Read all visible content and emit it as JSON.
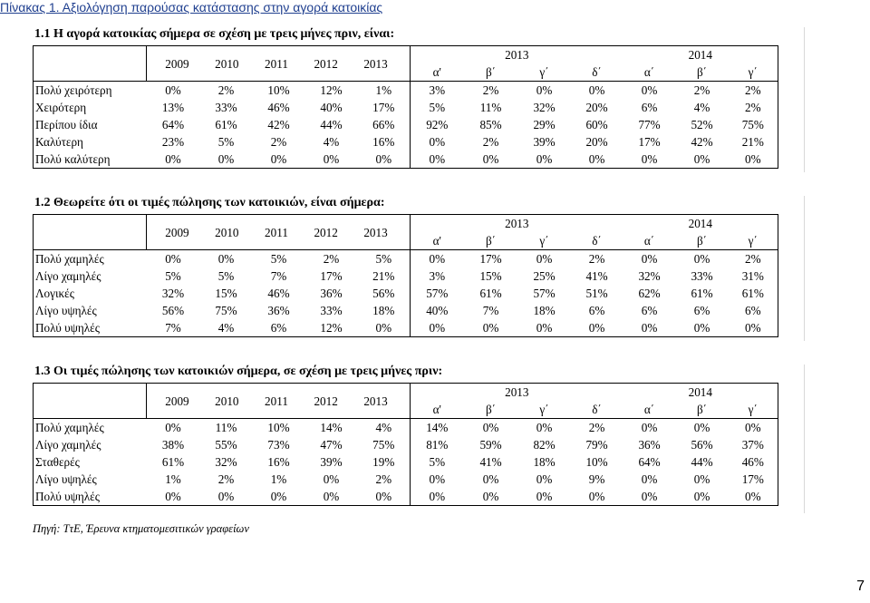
{
  "caption": "Πίνακας 1. Αξιολόγηση παρούσας κατάστασης στην αγορά κατοικίας",
  "years": [
    "2009",
    "2010",
    "2011",
    "2012",
    "2013"
  ],
  "group_2013": "2013",
  "group_2014": "2014",
  "quarters_2013": [
    "α'",
    "β΄",
    "γ΄",
    "δ΄"
  ],
  "quarters_2014": [
    "α΄",
    "β΄",
    "γ΄"
  ],
  "sections": [
    {
      "title": "1.1 Η αγορά κατοικίας σήμερα σε σχέση με τρεις μήνες πριν, είναι:",
      "rows": [
        {
          "label": "Πολύ χειρότερη",
          "values": [
            "0%",
            "2%",
            "10%",
            "12%",
            "1%",
            "3%",
            "2%",
            "0%",
            "0%",
            "0%",
            "2%",
            "2%"
          ]
        },
        {
          "label": "Χειρότερη",
          "values": [
            "13%",
            "33%",
            "46%",
            "40%",
            "17%",
            "5%",
            "11%",
            "32%",
            "20%",
            "6%",
            "4%",
            "2%"
          ]
        },
        {
          "label": "Περίπου ίδια",
          "values": [
            "64%",
            "61%",
            "42%",
            "44%",
            "66%",
            "92%",
            "85%",
            "29%",
            "60%",
            "77%",
            "52%",
            "75%"
          ]
        },
        {
          "label": "Καλύτερη",
          "values": [
            "23%",
            "5%",
            "2%",
            "4%",
            "16%",
            "0%",
            "2%",
            "39%",
            "20%",
            "17%",
            "42%",
            "21%"
          ]
        },
        {
          "label": "Πολύ καλύτερη",
          "values": [
            "0%",
            "0%",
            "0%",
            "0%",
            "0%",
            "0%",
            "0%",
            "0%",
            "0%",
            "0%",
            "0%",
            "0%"
          ]
        }
      ]
    },
    {
      "title": "1.2 Θεωρείτε ότι οι τιμές πώλησης των κατοικιών, είναι σήμερα:",
      "rows": [
        {
          "label": "Πολύ χαμηλές",
          "values": [
            "0%",
            "0%",
            "5%",
            "2%",
            "5%",
            "0%",
            "17%",
            "0%",
            "2%",
            "0%",
            "0%",
            "2%"
          ]
        },
        {
          "label": "Λίγο χαμηλές",
          "values": [
            "5%",
            "5%",
            "7%",
            "17%",
            "21%",
            "3%",
            "15%",
            "25%",
            "41%",
            "32%",
            "33%",
            "31%"
          ]
        },
        {
          "label": "Λογικές",
          "values": [
            "32%",
            "15%",
            "46%",
            "36%",
            "56%",
            "57%",
            "61%",
            "57%",
            "51%",
            "62%",
            "61%",
            "61%"
          ]
        },
        {
          "label": "Λίγο υψηλές",
          "values": [
            "56%",
            "75%",
            "36%",
            "33%",
            "18%",
            "40%",
            "7%",
            "18%",
            "6%",
            "6%",
            "6%",
            "6%"
          ]
        },
        {
          "label": "Πολύ υψηλές",
          "values": [
            "7%",
            "4%",
            "6%",
            "12%",
            "0%",
            "0%",
            "0%",
            "0%",
            "0%",
            "0%",
            "0%",
            "0%"
          ]
        }
      ]
    },
    {
      "title": "1.3 Οι τιμές πώλησης των κατοικιών σήμερα, σε σχέση με τρεις μήνες πριν:",
      "rows": [
        {
          "label": "Πολύ χαμηλές",
          "values": [
            "0%",
            "11%",
            "10%",
            "14%",
            "4%",
            "14%",
            "0%",
            "0%",
            "2%",
            "0%",
            "0%",
            "0%"
          ]
        },
        {
          "label": "Λίγο χαμηλές",
          "values": [
            "38%",
            "55%",
            "73%",
            "47%",
            "75%",
            "81%",
            "59%",
            "82%",
            "79%",
            "36%",
            "56%",
            "37%"
          ]
        },
        {
          "label": "Σταθερές",
          "values": [
            "61%",
            "32%",
            "16%",
            "39%",
            "19%",
            "5%",
            "41%",
            "18%",
            "10%",
            "64%",
            "44%",
            "46%"
          ]
        },
        {
          "label": "Λίγο υψηλές",
          "values": [
            "1%",
            "2%",
            "1%",
            "0%",
            "2%",
            "0%",
            "0%",
            "0%",
            "9%",
            "0%",
            "0%",
            "17%"
          ]
        },
        {
          "label": "Πολύ υψηλές",
          "values": [
            "0%",
            "0%",
            "0%",
            "0%",
            "0%",
            "0%",
            "0%",
            "0%",
            "0%",
            "0%",
            "0%",
            "0%"
          ]
        }
      ]
    }
  ],
  "source": "Πηγή: ΤτΕ, Έρευνα κτηματομεσιτικών γραφείων",
  "page_number": "7"
}
